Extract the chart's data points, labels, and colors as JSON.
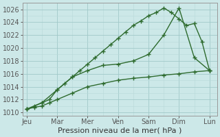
{
  "xlabel": "Pression niveau de la mer( hPa )",
  "days": [
    "Jeu",
    "Mar",
    "Mer",
    "Ven",
    "Sam",
    "Dim",
    "Lun"
  ],
  "day_tick_positions": [
    0,
    8,
    16,
    24,
    32,
    40,
    48
  ],
  "line1_x": [
    0,
    2,
    4,
    6,
    8,
    10,
    12,
    14,
    16,
    18,
    20,
    22,
    24,
    26,
    28,
    30,
    32,
    34,
    36,
    38,
    40,
    42,
    44,
    46,
    48
  ],
  "line1_y": [
    1010.5,
    1011.0,
    1011.5,
    1012.0,
    1013.5,
    1014.5,
    1015.5,
    1016.5,
    1017.5,
    1018.5,
    1019.5,
    1020.5,
    1021.5,
    1022.5,
    1023.5,
    1024.2,
    1025.0,
    1025.5,
    1026.2,
    1025.5,
    1024.5,
    1023.5,
    1023.8,
    1021.0,
    1016.5
  ],
  "line2_x": [
    0,
    4,
    8,
    12,
    16,
    20,
    24,
    28,
    32,
    36,
    40,
    44,
    48
  ],
  "line2_y": [
    1010.5,
    1011.5,
    1013.5,
    1015.5,
    1016.5,
    1017.3,
    1017.5,
    1018.0,
    1019.0,
    1022.0,
    1026.2,
    1018.5,
    1016.5
  ],
  "line3_x": [
    0,
    2,
    4,
    6,
    8,
    12,
    16,
    20,
    24,
    28,
    32,
    36,
    40,
    44,
    48
  ],
  "line3_y": [
    1010.5,
    1010.8,
    1011.0,
    1011.5,
    1012.0,
    1013.0,
    1014.0,
    1014.5,
    1015.0,
    1015.3,
    1015.5,
    1015.8,
    1016.0,
    1016.3,
    1016.5
  ],
  "line_color": "#2d6a2d",
  "bg_color": "#cce8e8",
  "grid_major_color": "#a0c8c8",
  "grid_minor_color": "#b8d8d8",
  "ylim": [
    1009.5,
    1027.0
  ],
  "xlim": [
    -1,
    50
  ],
  "yticks": [
    1010,
    1012,
    1014,
    1016,
    1018,
    1020,
    1022,
    1024,
    1026
  ],
  "marker": "+",
  "marker_size": 4,
  "line_width": 1.0,
  "xlabel_fontsize": 8,
  "tick_fontsize": 7
}
